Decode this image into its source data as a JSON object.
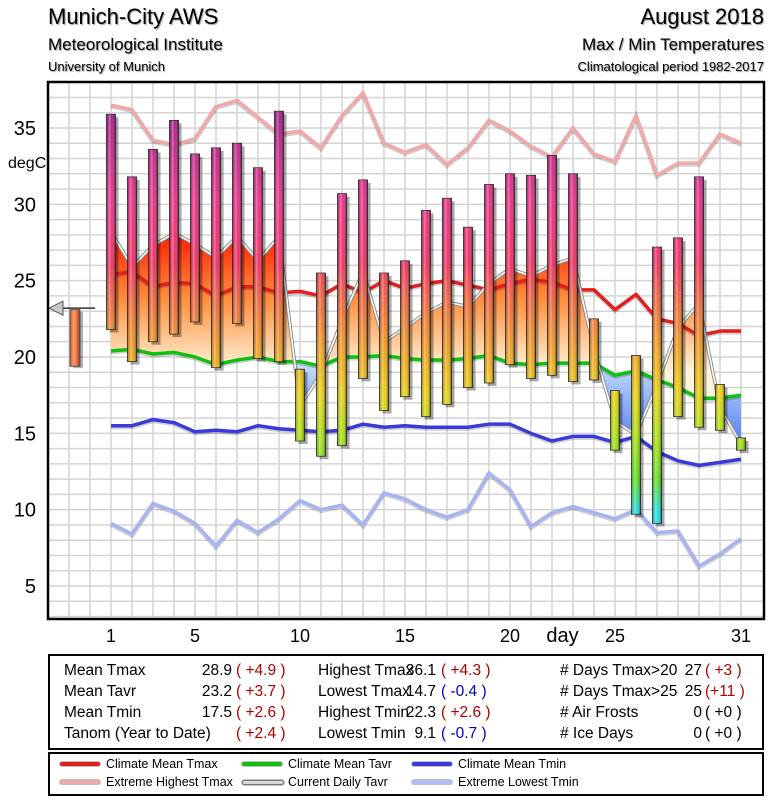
{
  "header": {
    "station": "Munich-City AWS",
    "institute": "Meteorological Institute",
    "university": "University of Munich",
    "month": "August 2018",
    "subtitle": "Max / Min Temperatures",
    "period": "Climatological period 1982-2017"
  },
  "chart_data": {
    "type": "bar",
    "title": "Max / Min Temperatures",
    "ylabel": "degC",
    "xlabel": "day",
    "ylim": [
      2.5,
      38.5
    ],
    "xlim": [
      -1.5,
      32
    ],
    "grid": true,
    "y_ticks": [
      5,
      10,
      15,
      20,
      25,
      30,
      35
    ],
    "x_ticks": [
      {
        "day": 1,
        "label": "1"
      },
      {
        "day": 5,
        "label": "5"
      },
      {
        "day": 10,
        "label": "10"
      },
      {
        "day": 15,
        "label": "15"
      },
      {
        "day": 20,
        "label": "20"
      },
      {
        "day": 22.5,
        "label": "day"
      },
      {
        "day": 25,
        "label": "25"
      },
      {
        "day": 31,
        "label": "31"
      }
    ],
    "days": [
      1,
      2,
      3,
      4,
      5,
      6,
      7,
      8,
      9,
      10,
      11,
      12,
      13,
      14,
      15,
      16,
      17,
      18,
      19,
      20,
      21,
      22,
      23,
      24,
      25,
      26,
      27,
      28,
      29,
      30,
      31
    ],
    "daily_tmax": [
      35.9,
      31.8,
      33.6,
      35.5,
      33.3,
      33.7,
      34.0,
      32.4,
      36.1,
      19.2,
      25.5,
      30.7,
      31.6,
      25.5,
      26.3,
      29.6,
      30.4,
      28.5,
      31.3,
      32.0,
      31.9,
      33.2,
      32.0,
      22.5,
      17.8,
      20.1,
      27.2,
      27.8,
      31.8,
      18.2,
      14.7
    ],
    "daily_tmin": [
      21.8,
      19.7,
      21.0,
      21.5,
      22.3,
      19.3,
      22.2,
      19.9,
      19.7,
      14.5,
      13.5,
      14.2,
      18.6,
      16.5,
      17.4,
      16.1,
      16.9,
      18.0,
      18.3,
      19.5,
      18.6,
      18.8,
      18.4,
      18.5,
      13.9,
      9.7,
      9.1,
      16.1,
      15.4,
      15.2,
      13.9
    ],
    "series": [
      {
        "name": "Climate Mean Tmax",
        "color": "#e02020",
        "values": [
          25.4,
          25.6,
          24.6,
          24.9,
          24.8,
          24.0,
          24.6,
          24.6,
          24.2,
          24.3,
          24.0,
          24.8,
          24.2,
          25.0,
          24.5,
          24.8,
          25.0,
          24.7,
          24.4,
          24.8,
          25.1,
          24.9,
          24.4,
          24.4,
          23.1,
          24.1,
          22.5,
          22.2,
          21.4,
          21.7,
          21.7
        ]
      },
      {
        "name": "Extreme Highest Tmax",
        "color": "#f0a8a8",
        "values": [
          36.5,
          36.2,
          34.2,
          33.9,
          34.3,
          36.4,
          36.8,
          35.7,
          34.6,
          34.8,
          33.7,
          35.8,
          37.3,
          34.0,
          33.4,
          33.9,
          32.6,
          33.7,
          35.5,
          34.8,
          33.8,
          33.1,
          35.0,
          33.3,
          32.8,
          35.8,
          31.9,
          32.7,
          32.7,
          34.6,
          34.0
        ]
      },
      {
        "name": "Climate Mean Tavr",
        "color": "#10c010",
        "values": [
          20.4,
          20.5,
          20.2,
          20.3,
          20.0,
          19.5,
          19.8,
          20.0,
          19.7,
          19.7,
          19.4,
          20.0,
          20.0,
          20.1,
          19.9,
          19.8,
          19.8,
          19.9,
          20.1,
          19.6,
          19.5,
          19.6,
          19.6,
          19.6,
          18.8,
          19.1,
          18.5,
          18.0,
          17.3,
          17.3,
          17.5
        ]
      },
      {
        "name": "Current Daily Tavr",
        "color": "#b8b8b8",
        "values": [
          28.2,
          25.9,
          27.3,
          28.1,
          27.4,
          26.5,
          27.9,
          26.3,
          27.9,
          16.8,
          18.9,
          22.4,
          25.6,
          21.0,
          21.9,
          22.9,
          23.6,
          23.3,
          24.8,
          25.8,
          25.3,
          26.0,
          26.5,
          20.5,
          15.8,
          14.9,
          18.2,
          21.9,
          23.5,
          16.7,
          14.3
        ]
      },
      {
        "name": "Climate Mean Tmin",
        "color": "#3a3ad8",
        "values": [
          15.5,
          15.5,
          15.9,
          15.7,
          15.1,
          15.2,
          15.1,
          15.5,
          15.3,
          15.2,
          15.1,
          15.2,
          15.6,
          15.4,
          15.5,
          15.4,
          15.4,
          15.4,
          15.6,
          15.6,
          15.0,
          14.5,
          14.8,
          14.8,
          14.4,
          14.8,
          13.8,
          13.2,
          12.9,
          13.1,
          13.3
        ]
      },
      {
        "name": "Extreme Lowest Tmin",
        "color": "#a8b4f0",
        "values": [
          9.1,
          8.4,
          10.4,
          9.9,
          9.1,
          7.6,
          9.3,
          8.5,
          9.4,
          10.6,
          10.0,
          10.3,
          9.0,
          11.1,
          10.7,
          10.0,
          9.5,
          10.0,
          12.4,
          11.3,
          8.9,
          9.8,
          10.2,
          9.8,
          9.4,
          10.0,
          8.5,
          8.6,
          6.3,
          7.1,
          8.1
        ]
      }
    ],
    "mean_indicator": {
      "label": "Mean Tavr",
      "value": 23.2,
      "bar_top": 23.1,
      "bar_bottom": 19.4
    }
  },
  "stats": {
    "col1": [
      {
        "label": "Mean Tmax",
        "value": "28.9",
        "anom": "( +4.9 )",
        "sign": "pos"
      },
      {
        "label": "Mean Tavr",
        "value": "23.2",
        "anom": "( +3.7 )",
        "sign": "pos"
      },
      {
        "label": "Mean Tmin",
        "value": "17.5",
        "anom": "( +2.6 )",
        "sign": "pos"
      },
      {
        "label": "Tanom (Year to Date)",
        "value": "",
        "anom": "( +2.4 )",
        "sign": "pos"
      }
    ],
    "col2": [
      {
        "label": "Highest Tmax",
        "value": "36.1",
        "anom": "( +4.3 )",
        "sign": "pos"
      },
      {
        "label": "Lowest Tmax",
        "value": "14.7",
        "anom": "( -0.4 )",
        "sign": "neg"
      },
      {
        "label": "Highest Tmin",
        "value": "22.3",
        "anom": "( +2.6 )",
        "sign": "pos"
      },
      {
        "label": "Lowest Tmin",
        "value": "9.1",
        "anom": "( -0.7 )",
        "sign": "neg"
      }
    ],
    "col3": [
      {
        "label": "# Days Tmax>20",
        "value": "27",
        "anom": "( +3 )",
        "sign": "pos"
      },
      {
        "label": "# Days Tmax>25",
        "value": "25",
        "anom": "(+11 )",
        "sign": "pos"
      },
      {
        "label": "# Air Frosts",
        "value": "0",
        "anom": "( +0 )",
        "sign": "neu"
      },
      {
        "label": "# Ice Days",
        "value": "0",
        "anom": "( +0 )",
        "sign": "neu"
      }
    ]
  },
  "legend": [
    {
      "label": "Climate Mean Tmax",
      "color": "#e02020"
    },
    {
      "label": "Extreme Highest Tmax",
      "color": "#f0a8a8"
    },
    {
      "label": "Climate Mean Tavr",
      "color": "#10c010"
    },
    {
      "label": "Current Daily Tavr",
      "color": "#d8d8d8"
    },
    {
      "label": "Climate Mean Tmin",
      "color": "#3a3ad8"
    },
    {
      "label": "Extreme Lowest Tmin",
      "color": "#b4bef4"
    }
  ]
}
